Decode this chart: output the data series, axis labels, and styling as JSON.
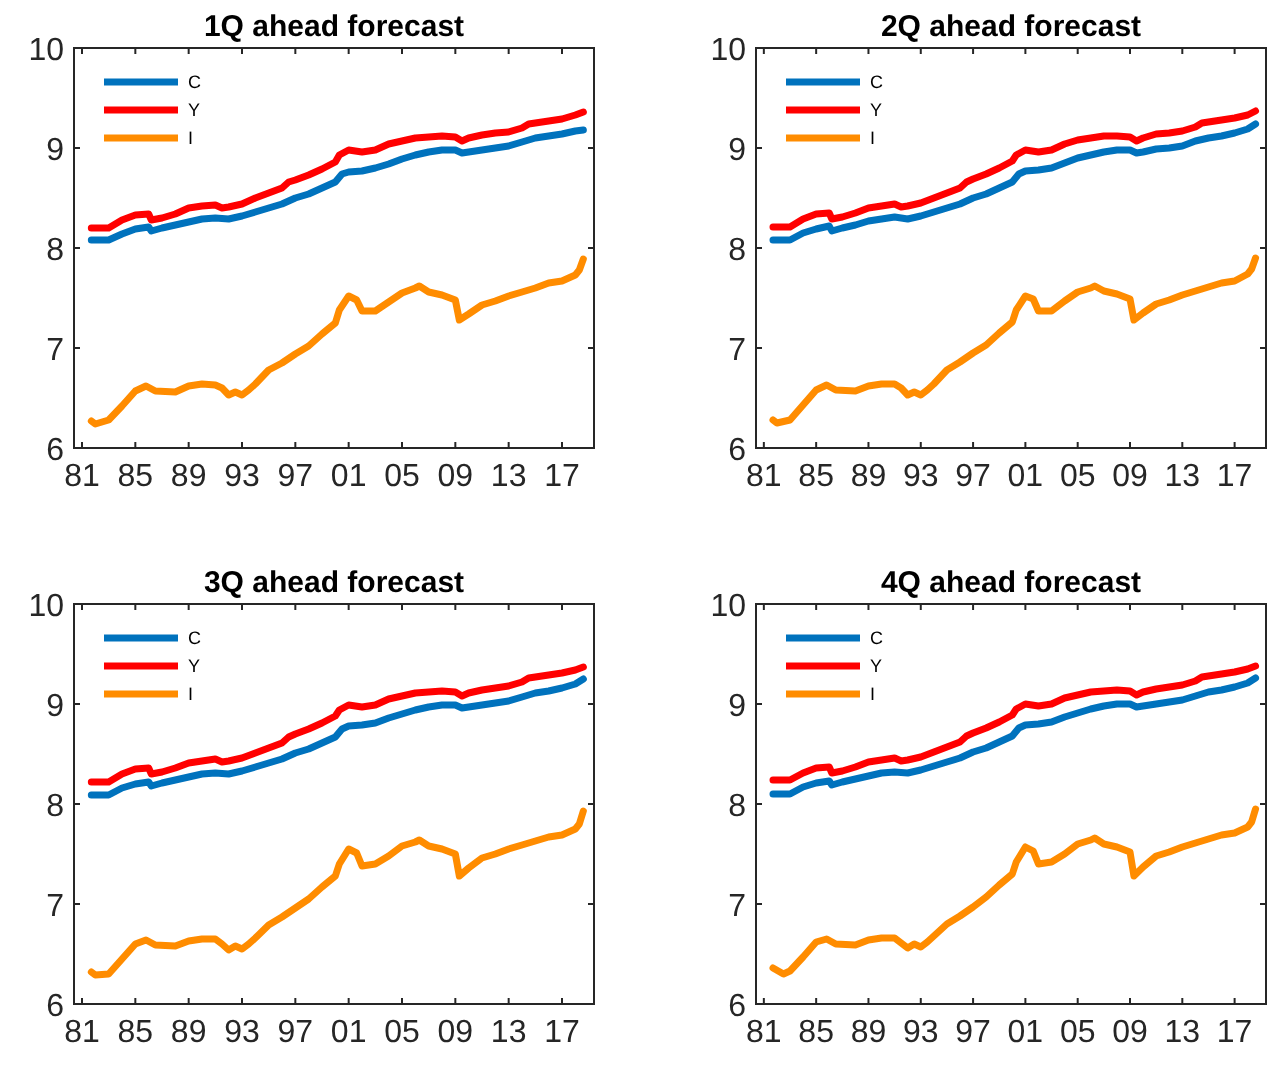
{
  "chart_data": [
    {
      "type": "line",
      "title": "1Q ahead forecast",
      "legend": "top left",
      "xlim": [
        1980.4,
        2019.4
      ],
      "ylim": [
        6,
        10
      ],
      "yticks": [
        6,
        7,
        8,
        9,
        10
      ],
      "xticks": [
        {
          "value": 1981,
          "label": "81"
        },
        {
          "value": 1985,
          "label": "85"
        },
        {
          "value": 1989,
          "label": "89"
        },
        {
          "value": 1993,
          "label": "93"
        },
        {
          "value": 1997,
          "label": "97"
        },
        {
          "value": 2001,
          "label": "01"
        },
        {
          "value": 2005,
          "label": "05"
        },
        {
          "value": 2009,
          "label": "09"
        },
        {
          "value": 2013,
          "label": "13"
        },
        {
          "value": 2017,
          "label": "17"
        }
      ],
      "series": [
        {
          "name": "C",
          "color": "#0072bd",
          "x": [
            1981.7,
            1983,
            1984,
            1985,
            1986,
            1986.2,
            1987,
            1988,
            1989,
            1990,
            1991,
            1992,
            1993,
            1994,
            1995,
            1996,
            1997,
            1998,
            1999,
            2000,
            2000.5,
            2001,
            2002,
            2003,
            2004,
            2005,
            2006,
            2007,
            2008,
            2009,
            2009.5,
            2010,
            2011,
            2012,
            2013,
            2014,
            2015,
            2016,
            2017,
            2018,
            2018.6
          ],
          "values": [
            8.08,
            8.08,
            8.14,
            8.19,
            8.21,
            8.17,
            8.2,
            8.23,
            8.26,
            8.29,
            8.3,
            8.29,
            8.32,
            8.36,
            8.4,
            8.44,
            8.5,
            8.54,
            8.6,
            8.66,
            8.74,
            8.76,
            8.77,
            8.8,
            8.84,
            8.89,
            8.93,
            8.96,
            8.98,
            8.98,
            8.95,
            8.96,
            8.98,
            9.0,
            9.02,
            9.06,
            9.1,
            9.12,
            9.14,
            9.17,
            9.18
          ]
        },
        {
          "name": "Y",
          "color": "#ff0000",
          "x": [
            1981.7,
            1983,
            1984,
            1985,
            1986,
            1986.2,
            1987,
            1988,
            1989,
            1990,
            1991,
            1991.5,
            1992,
            1993,
            1994,
            1995,
            1996,
            1996.5,
            1997,
            1998,
            1999,
            2000,
            2000.3,
            2001,
            2002,
            2003,
            2004,
            2005,
            2006,
            2007,
            2008,
            2009,
            2009.5,
            2010,
            2011,
            2012,
            2013,
            2014,
            2014.5,
            2015,
            2016,
            2017,
            2018,
            2018.6
          ],
          "values": [
            8.2,
            8.2,
            8.28,
            8.33,
            8.34,
            8.28,
            8.3,
            8.34,
            8.4,
            8.42,
            8.43,
            8.4,
            8.41,
            8.44,
            8.5,
            8.55,
            8.6,
            8.66,
            8.68,
            8.73,
            8.79,
            8.86,
            8.93,
            8.98,
            8.96,
            8.98,
            9.04,
            9.07,
            9.1,
            9.11,
            9.12,
            9.11,
            9.07,
            9.1,
            9.13,
            9.15,
            9.16,
            9.2,
            9.24,
            9.25,
            9.27,
            9.29,
            9.33,
            9.36
          ]
        },
        {
          "name": "I",
          "color": "#ff8c00",
          "x": [
            1981.7,
            1982,
            1983,
            1984,
            1985,
            1985.8,
            1986.5,
            1988,
            1989,
            1990,
            1991,
            1991.5,
            1992,
            1992.5,
            1993,
            1993.5,
            1994,
            1995,
            1996,
            1997,
            1998,
            1999,
            2000,
            2000.3,
            2001,
            2001.6,
            2002,
            2003,
            2004,
            2005,
            2006,
            2006.3,
            2007,
            2008,
            2009,
            2009.3,
            2010,
            2011,
            2012,
            2013,
            2014,
            2015,
            2016,
            2017,
            2018,
            2018.3,
            2018.6
          ],
          "values": [
            6.27,
            6.24,
            6.28,
            6.42,
            6.57,
            6.62,
            6.57,
            6.56,
            6.62,
            6.64,
            6.63,
            6.6,
            6.53,
            6.56,
            6.53,
            6.58,
            6.64,
            6.78,
            6.85,
            6.94,
            7.02,
            7.14,
            7.25,
            7.38,
            7.52,
            7.48,
            7.37,
            7.37,
            7.46,
            7.55,
            7.6,
            7.62,
            7.56,
            7.53,
            7.48,
            7.28,
            7.34,
            7.43,
            7.47,
            7.52,
            7.56,
            7.6,
            7.65,
            7.67,
            7.73,
            7.78,
            7.89
          ]
        }
      ]
    },
    {
      "type": "line",
      "title": "2Q ahead forecast",
      "legend": "top left",
      "xlim": [
        1980.4,
        2019.4
      ],
      "ylim": [
        6,
        10
      ],
      "yticks": [
        6,
        7,
        8,
        9,
        10
      ],
      "xticks": [
        {
          "value": 1981,
          "label": "81"
        },
        {
          "value": 1985,
          "label": "85"
        },
        {
          "value": 1989,
          "label": "89"
        },
        {
          "value": 1993,
          "label": "93"
        },
        {
          "value": 1997,
          "label": "97"
        },
        {
          "value": 2001,
          "label": "01"
        },
        {
          "value": 2005,
          "label": "05"
        },
        {
          "value": 2009,
          "label": "09"
        },
        {
          "value": 2013,
          "label": "13"
        },
        {
          "value": 2017,
          "label": "17"
        }
      ],
      "series": [
        {
          "name": "C",
          "color": "#0072bd",
          "x": [
            1981.7,
            1983,
            1984,
            1985,
            1986,
            1986.2,
            1987,
            1988,
            1989,
            1990,
            1991,
            1992,
            1993,
            1994,
            1995,
            1996,
            1997,
            1998,
            1999,
            2000,
            2000.5,
            2001,
            2002,
            2003,
            2004,
            2005,
            2006,
            2007,
            2008,
            2009,
            2009.5,
            2010,
            2011,
            2012,
            2013,
            2014,
            2015,
            2016,
            2017,
            2018,
            2018.6
          ],
          "values": [
            8.08,
            8.08,
            8.15,
            8.19,
            8.22,
            8.17,
            8.2,
            8.23,
            8.27,
            8.29,
            8.31,
            8.29,
            8.32,
            8.36,
            8.4,
            8.44,
            8.5,
            8.54,
            8.6,
            8.66,
            8.74,
            8.77,
            8.78,
            8.8,
            8.85,
            8.9,
            8.93,
            8.96,
            8.98,
            8.98,
            8.95,
            8.96,
            8.99,
            9.0,
            9.02,
            9.07,
            9.1,
            9.12,
            9.15,
            9.19,
            9.24
          ]
        },
        {
          "name": "Y",
          "color": "#ff0000",
          "x": [
            1981.7,
            1983,
            1984,
            1985,
            1986,
            1986.2,
            1987,
            1988,
            1989,
            1990,
            1991,
            1991.5,
            1992,
            1993,
            1994,
            1995,
            1996,
            1996.5,
            1997,
            1998,
            1999,
            2000,
            2000.3,
            2001,
            2002,
            2003,
            2004,
            2005,
            2006,
            2007,
            2008,
            2009,
            2009.5,
            2010,
            2011,
            2012,
            2013,
            2014,
            2014.5,
            2015,
            2016,
            2017,
            2018,
            2018.6
          ],
          "values": [
            8.21,
            8.21,
            8.29,
            8.34,
            8.35,
            8.29,
            8.31,
            8.35,
            8.4,
            8.42,
            8.44,
            8.41,
            8.42,
            8.45,
            8.5,
            8.55,
            8.6,
            8.66,
            8.69,
            8.74,
            8.8,
            8.87,
            8.93,
            8.98,
            8.96,
            8.98,
            9.04,
            9.08,
            9.1,
            9.12,
            9.12,
            9.11,
            9.07,
            9.1,
            9.14,
            9.15,
            9.17,
            9.21,
            9.25,
            9.26,
            9.28,
            9.3,
            9.33,
            9.37
          ]
        },
        {
          "name": "I",
          "color": "#ff8c00",
          "x": [
            1981.7,
            1982,
            1983,
            1984,
            1985,
            1985.8,
            1986.5,
            1988,
            1989,
            1990,
            1991,
            1991.5,
            1992,
            1992.5,
            1993,
            1993.5,
            1994,
            1995,
            1996,
            1997,
            1998,
            1999,
            2000,
            2000.3,
            2001,
            2001.6,
            2002,
            2003,
            2004,
            2005,
            2006,
            2006.3,
            2007,
            2008,
            2009,
            2009.3,
            2010,
            2011,
            2012,
            2013,
            2014,
            2015,
            2016,
            2017,
            2018,
            2018.3,
            2018.6
          ],
          "values": [
            6.28,
            6.25,
            6.28,
            6.43,
            6.58,
            6.63,
            6.58,
            6.57,
            6.62,
            6.64,
            6.64,
            6.6,
            6.53,
            6.56,
            6.53,
            6.58,
            6.64,
            6.78,
            6.86,
            6.95,
            7.03,
            7.15,
            7.26,
            7.38,
            7.52,
            7.49,
            7.37,
            7.37,
            7.47,
            7.56,
            7.6,
            7.62,
            7.57,
            7.54,
            7.49,
            7.28,
            7.35,
            7.44,
            7.48,
            7.53,
            7.57,
            7.61,
            7.65,
            7.67,
            7.74,
            7.79,
            7.9
          ]
        }
      ]
    },
    {
      "type": "line",
      "title": "3Q ahead forecast",
      "legend": "top left",
      "xlim": [
        1980.4,
        2019.4
      ],
      "ylim": [
        6,
        10
      ],
      "yticks": [
        6,
        7,
        8,
        9,
        10
      ],
      "xticks": [
        {
          "value": 1981,
          "label": "81"
        },
        {
          "value": 1985,
          "label": "85"
        },
        {
          "value": 1989,
          "label": "89"
        },
        {
          "value": 1993,
          "label": "93"
        },
        {
          "value": 1997,
          "label": "97"
        },
        {
          "value": 2001,
          "label": "01"
        },
        {
          "value": 2005,
          "label": "05"
        },
        {
          "value": 2009,
          "label": "09"
        },
        {
          "value": 2013,
          "label": "13"
        },
        {
          "value": 2017,
          "label": "17"
        }
      ],
      "series": [
        {
          "name": "C",
          "color": "#0072bd",
          "x": [
            1981.7,
            1983,
            1984,
            1985,
            1986,
            1986.2,
            1987,
            1988,
            1989,
            1990,
            1991,
            1992,
            1993,
            1994,
            1995,
            1996,
            1997,
            1998,
            1999,
            2000,
            2000.5,
            2001,
            2002,
            2003,
            2004,
            2005,
            2006,
            2007,
            2008,
            2009,
            2009.5,
            2010,
            2011,
            2012,
            2013,
            2014,
            2015,
            2016,
            2017,
            2018,
            2018.6
          ],
          "values": [
            8.09,
            8.09,
            8.16,
            8.2,
            8.22,
            8.18,
            8.21,
            8.24,
            8.27,
            8.3,
            8.31,
            8.3,
            8.33,
            8.37,
            8.41,
            8.45,
            8.51,
            8.55,
            8.61,
            8.67,
            8.75,
            8.78,
            8.79,
            8.81,
            8.86,
            8.9,
            8.94,
            8.97,
            8.99,
            8.99,
            8.96,
            8.97,
            8.99,
            9.01,
            9.03,
            9.07,
            9.11,
            9.13,
            9.16,
            9.2,
            9.25
          ]
        },
        {
          "name": "Y",
          "color": "#ff0000",
          "x": [
            1981.7,
            1983,
            1984,
            1985,
            1986,
            1986.2,
            1987,
            1988,
            1989,
            1990,
            1991,
            1991.5,
            1992,
            1993,
            1994,
            1995,
            1996,
            1996.5,
            1997,
            1998,
            1999,
            2000,
            2000.3,
            2001,
            2002,
            2003,
            2004,
            2005,
            2006,
            2007,
            2008,
            2009,
            2009.5,
            2010,
            2011,
            2012,
            2013,
            2014,
            2014.5,
            2015,
            2016,
            2017,
            2018,
            2018.6
          ],
          "values": [
            8.22,
            8.22,
            8.3,
            8.35,
            8.36,
            8.3,
            8.32,
            8.36,
            8.41,
            8.43,
            8.45,
            8.42,
            8.43,
            8.46,
            8.51,
            8.56,
            8.61,
            8.67,
            8.7,
            8.75,
            8.81,
            8.88,
            8.94,
            8.99,
            8.97,
            8.99,
            9.05,
            9.08,
            9.11,
            9.12,
            9.13,
            9.12,
            9.08,
            9.11,
            9.14,
            9.16,
            9.18,
            9.22,
            9.26,
            9.27,
            9.29,
            9.31,
            9.34,
            9.37
          ]
        },
        {
          "name": "I",
          "color": "#ff8c00",
          "x": [
            1981.7,
            1982,
            1983,
            1984,
            1985,
            1985.8,
            1986.5,
            1988,
            1989,
            1990,
            1991,
            1991.5,
            1992,
            1992.5,
            1993,
            1993.5,
            1994,
            1995,
            1996,
            1997,
            1998,
            1999,
            2000,
            2000.3,
            2001,
            2001.6,
            2002,
            2003,
            2004,
            2005,
            2006,
            2006.3,
            2007,
            2008,
            2009,
            2009.3,
            2010,
            2011,
            2012,
            2013,
            2014,
            2015,
            2016,
            2017,
            2018,
            2018.3,
            2018.6
          ],
          "values": [
            6.32,
            6.29,
            6.3,
            6.45,
            6.6,
            6.64,
            6.59,
            6.58,
            6.63,
            6.65,
            6.65,
            6.6,
            6.54,
            6.58,
            6.55,
            6.6,
            6.66,
            6.79,
            6.87,
            6.96,
            7.05,
            7.17,
            7.28,
            7.4,
            7.55,
            7.51,
            7.38,
            7.4,
            7.48,
            7.58,
            7.62,
            7.64,
            7.58,
            7.55,
            7.5,
            7.28,
            7.36,
            7.46,
            7.5,
            7.55,
            7.59,
            7.63,
            7.67,
            7.69,
            7.75,
            7.8,
            7.93
          ]
        }
      ]
    },
    {
      "type": "line",
      "title": "4Q ahead forecast",
      "legend": "top left",
      "xlim": [
        1980.4,
        2019.4
      ],
      "ylim": [
        6,
        10
      ],
      "yticks": [
        6,
        7,
        8,
        9,
        10
      ],
      "xticks": [
        {
          "value": 1981,
          "label": "81"
        },
        {
          "value": 1985,
          "label": "85"
        },
        {
          "value": 1989,
          "label": "89"
        },
        {
          "value": 1993,
          "label": "93"
        },
        {
          "value": 1997,
          "label": "97"
        },
        {
          "value": 2001,
          "label": "01"
        },
        {
          "value": 2005,
          "label": "05"
        },
        {
          "value": 2009,
          "label": "09"
        },
        {
          "value": 2013,
          "label": "13"
        },
        {
          "value": 2017,
          "label": "17"
        }
      ],
      "series": [
        {
          "name": "C",
          "color": "#0072bd",
          "x": [
            1981.7,
            1983,
            1984,
            1985,
            1986,
            1986.2,
            1987,
            1988,
            1989,
            1990,
            1991,
            1992,
            1993,
            1994,
            1995,
            1996,
            1997,
            1998,
            1999,
            2000,
            2000.5,
            2001,
            2002,
            2003,
            2004,
            2005,
            2006,
            2007,
            2008,
            2009,
            2009.5,
            2010,
            2011,
            2012,
            2013,
            2014,
            2015,
            2016,
            2017,
            2018,
            2018.6
          ],
          "values": [
            8.1,
            8.1,
            8.17,
            8.21,
            8.23,
            8.19,
            8.22,
            8.25,
            8.28,
            8.31,
            8.32,
            8.31,
            8.34,
            8.38,
            8.42,
            8.46,
            8.52,
            8.56,
            8.62,
            8.68,
            8.76,
            8.79,
            8.8,
            8.82,
            8.87,
            8.91,
            8.95,
            8.98,
            9.0,
            9.0,
            8.97,
            8.98,
            9.0,
            9.02,
            9.04,
            9.08,
            9.12,
            9.14,
            9.17,
            9.21,
            9.26
          ]
        },
        {
          "name": "Y",
          "color": "#ff0000",
          "x": [
            1981.7,
            1983,
            1984,
            1985,
            1986,
            1986.2,
            1987,
            1988,
            1989,
            1990,
            1991,
            1991.5,
            1992,
            1993,
            1994,
            1995,
            1996,
            1996.5,
            1997,
            1998,
            1999,
            2000,
            2000.3,
            2001,
            2002,
            2003,
            2004,
            2005,
            2006,
            2007,
            2008,
            2009,
            2009.5,
            2010,
            2011,
            2012,
            2013,
            2014,
            2014.5,
            2015,
            2016,
            2017,
            2018,
            2018.6
          ],
          "values": [
            8.24,
            8.24,
            8.31,
            8.36,
            8.37,
            8.31,
            8.33,
            8.37,
            8.42,
            8.44,
            8.46,
            8.43,
            8.44,
            8.47,
            8.52,
            8.57,
            8.62,
            8.68,
            8.71,
            8.76,
            8.82,
            8.89,
            8.95,
            9.0,
            8.98,
            9.0,
            9.06,
            9.09,
            9.12,
            9.13,
            9.14,
            9.13,
            9.09,
            9.12,
            9.15,
            9.17,
            9.19,
            9.23,
            9.27,
            9.28,
            9.3,
            9.32,
            9.35,
            9.38
          ]
        },
        {
          "name": "I",
          "color": "#ff8c00",
          "x": [
            1981.7,
            1982.5,
            1983,
            1984,
            1985,
            1985.8,
            1986.5,
            1988,
            1989,
            1990,
            1991,
            1991.5,
            1992,
            1992.5,
            1993,
            1993.5,
            1994,
            1995,
            1996,
            1997,
            1998,
            1999,
            2000,
            2000.3,
            2001,
            2001.6,
            2002,
            2003,
            2004,
            2005,
            2006,
            2006.3,
            2007,
            2008,
            2009,
            2009.3,
            2010,
            2011,
            2012,
            2013,
            2014,
            2015,
            2016,
            2017,
            2018,
            2018.3,
            2018.6
          ],
          "values": [
            6.36,
            6.3,
            6.33,
            6.47,
            6.62,
            6.65,
            6.6,
            6.59,
            6.64,
            6.66,
            6.66,
            6.61,
            6.56,
            6.6,
            6.57,
            6.62,
            6.68,
            6.8,
            6.88,
            6.97,
            7.07,
            7.19,
            7.3,
            7.42,
            7.57,
            7.53,
            7.4,
            7.42,
            7.5,
            7.6,
            7.64,
            7.66,
            7.6,
            7.57,
            7.52,
            7.28,
            7.37,
            7.48,
            7.52,
            7.57,
            7.61,
            7.65,
            7.69,
            7.71,
            7.77,
            7.82,
            7.95
          ]
        }
      ]
    }
  ]
}
